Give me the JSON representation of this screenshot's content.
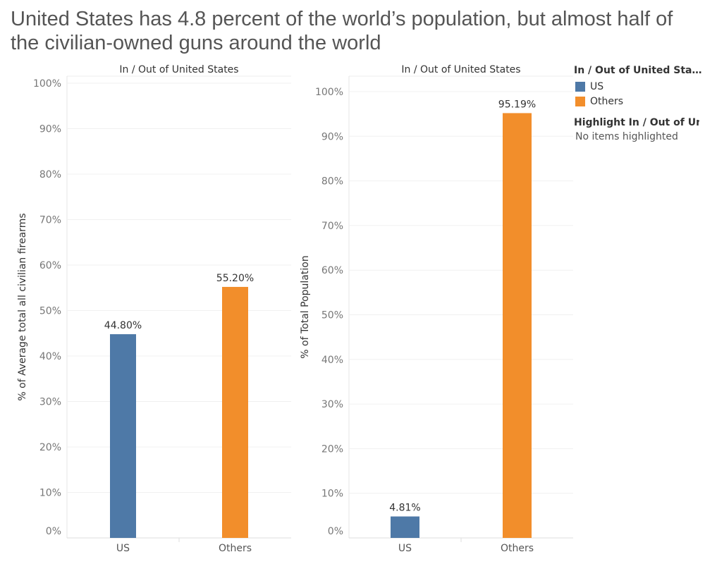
{
  "title": "United States has 4.8 percent of the world’s population, but almost half of the civilian-owned guns around the world",
  "legend": {
    "title": "In / Out of United States",
    "items": [
      {
        "label": "US",
        "color": "#4e79a7"
      },
      {
        "label": "Others",
        "color": "#f28e2b"
      }
    ],
    "highlight_title": "Highlight In / Out of Uni..",
    "highlight_text": "No items highlighted"
  },
  "chart_data": [
    {
      "type": "bar",
      "header": "In / Out of United States",
      "categories": [
        "US",
        "Others"
      ],
      "values": [
        44.8,
        55.2
      ],
      "value_labels": [
        "44.80%",
        "55.20%"
      ],
      "colors": [
        "#4e79a7",
        "#f28e2b"
      ],
      "ylabel": "% of Average total all civilian firearms",
      "ylim": [
        0,
        100
      ],
      "yticks": [
        "0%",
        "10%",
        "20%",
        "30%",
        "40%",
        "50%",
        "60%",
        "70%",
        "80%",
        "90%",
        "100%"
      ],
      "grid": true
    },
    {
      "type": "bar",
      "header": "In / Out of United States",
      "categories": [
        "US",
        "Others"
      ],
      "values": [
        4.81,
        95.19
      ],
      "value_labels": [
        "4.81%",
        "95.19%"
      ],
      "colors": [
        "#4e79a7",
        "#f28e2b"
      ],
      "ylabel": "% of Total Population",
      "ylim": [
        0,
        100
      ],
      "yticks": [
        "0%",
        "10%",
        "20%",
        "30%",
        "40%",
        "50%",
        "60%",
        "70%",
        "80%",
        "90%",
        "100%"
      ],
      "grid": true
    }
  ]
}
